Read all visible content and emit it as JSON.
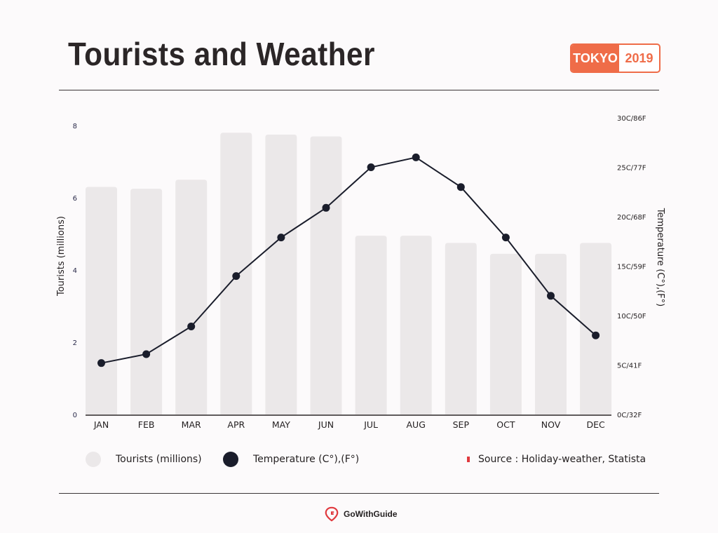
{
  "header": {
    "title": "Tourists and Weather",
    "badge_city": "TOKYO",
    "badge_year": "2019"
  },
  "chart_data": {
    "type": "bar+line",
    "categories": [
      "JAN",
      "FEB",
      "MAR",
      "APR",
      "MAY",
      "JUN",
      "JUL",
      "AUG",
      "SEP",
      "OCT",
      "NOV",
      "DEC"
    ],
    "series": [
      {
        "name": "Tourists (millions)",
        "type": "bar",
        "axis": "left",
        "values": [
          6.3,
          6.25,
          6.5,
          7.8,
          7.75,
          7.7,
          4.95,
          4.95,
          4.75,
          4.45,
          4.45,
          4.75
        ]
      },
      {
        "name": "Temperature (C°),(F°)",
        "type": "line",
        "axis": "right",
        "values": [
          5.2,
          6.1,
          8.9,
          14.0,
          17.9,
          20.9,
          25.0,
          26.0,
          23.0,
          17.9,
          12.0,
          8.0
        ]
      }
    ],
    "y_left": {
      "label": "Tourists (millions)",
      "ticks": [
        "0",
        "2",
        "4",
        "6",
        "8"
      ],
      "range": [
        0,
        8
      ]
    },
    "y_right": {
      "label": "Temperature (C°),(F°)",
      "ticks": [
        "0C/32F",
        "5C/41F",
        "10C/50F",
        "15C/59F",
        "20C/68F",
        "25C/77F",
        "30C/86F"
      ],
      "range": [
        0,
        30
      ]
    },
    "colors": {
      "bar": "#ebe8e9",
      "line": "#1a1d2b",
      "accent": "#ef6c48"
    },
    "grid": false,
    "legend": "bottom"
  },
  "legend": {
    "tourists": "Tourists (millions)",
    "temperature": "Temperature (C°),(F°)"
  },
  "source": "Source : Holiday-weather, Statista",
  "brand": "GoWithGuide"
}
